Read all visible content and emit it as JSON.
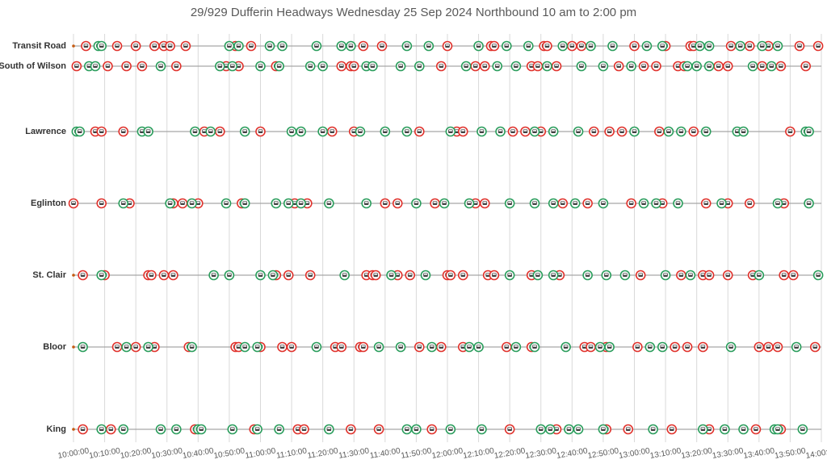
{
  "chart_data": {
    "type": "timeline",
    "title": "29/929 Dufferin Headways Wednesday 25 Sep 2024 Northbound 10 am to 2:00 pm",
    "categories": [
      "Transit Road",
      "South of Wilson",
      "Lawrence",
      "Eglinton",
      "St. Clair",
      "Bloor",
      "King"
    ],
    "xlim": [
      600,
      840
    ],
    "xticks": [
      {
        "value": 600,
        "label": "10:00:00"
      },
      {
        "value": 610,
        "label": "10:10:00"
      },
      {
        "value": 620,
        "label": "10:20:00"
      },
      {
        "value": 630,
        "label": "10:30:00"
      },
      {
        "value": 640,
        "label": "10:40:00"
      },
      {
        "value": 650,
        "label": "10:50:00"
      },
      {
        "value": 660,
        "label": "11:00:00"
      },
      {
        "value": 670,
        "label": "11:10:00"
      },
      {
        "value": 680,
        "label": "11:20:00"
      },
      {
        "value": 690,
        "label": "11:30:00"
      },
      {
        "value": 700,
        "label": "11:40:00"
      },
      {
        "value": 710,
        "label": "11:50:00"
      },
      {
        "value": 720,
        "label": "12:00:00"
      },
      {
        "value": 730,
        "label": "12:10:00"
      },
      {
        "value": 740,
        "label": "12:20:00"
      },
      {
        "value": 750,
        "label": "12:30:00"
      },
      {
        "value": 760,
        "label": "12:40:00"
      },
      {
        "value": 770,
        "label": "12:50:00"
      },
      {
        "value": 780,
        "label": "13:00:00"
      },
      {
        "value": 790,
        "label": "13:10:00"
      },
      {
        "value": 800,
        "label": "13:20:00"
      },
      {
        "value": 810,
        "label": "13:30:00"
      },
      {
        "value": 820,
        "label": "13:40:00"
      },
      {
        "value": 830,
        "label": "13:50:00"
      },
      {
        "value": 840,
        "label": "14:00:00"
      }
    ],
    "grid": true,
    "series": [
      {
        "color": "#e0322c",
        "values": [
          [
            604,
            614,
            620,
            626,
            629,
            631,
            636,
            652,
            657,
            693,
            699,
            720,
            734,
            735,
            751,
            752,
            760,
            763,
            780,
            790,
            798,
            799,
            811,
            817,
            823,
            833,
            839
          ],
          [
            601,
            611,
            617,
            622,
            633,
            649,
            653,
            665,
            686,
            689,
            690,
            718,
            729,
            732,
            747,
            749,
            755,
            775,
            783,
            787,
            794,
            796,
            807,
            810,
            821,
            827,
            835
          ],
          [
            607,
            609,
            616,
            642,
            647,
            660,
            683,
            690,
            711,
            723,
            725,
            741,
            745,
            750,
            767,
            772,
            776,
            788,
            799,
            830
          ],
          [
            600,
            609,
            618,
            632,
            635,
            640,
            654,
            671,
            675,
            700,
            704,
            716,
            729,
            732,
            757,
            765,
            779,
            789,
            803,
            810,
            817,
            828
          ],
          [
            603,
            610,
            624,
            625,
            629,
            632,
            665,
            669,
            676,
            694,
            696,
            697,
            704,
            708,
            720,
            721,
            725,
            733,
            735,
            747,
            756,
            782,
            795,
            802,
            804,
            810,
            818,
            828,
            831
          ],
          [
            614,
            620,
            626,
            637,
            652,
            653,
            660,
            667,
            670,
            684,
            686,
            692,
            693,
            711,
            718,
            725,
            739,
            747,
            764,
            766,
            771,
            781,
            793,
            797,
            802,
            820,
            823,
            826,
            838
          ],
          [
            603,
            612,
            639,
            658,
            672,
            674,
            689,
            698,
            715,
            740,
            755,
            771,
            778,
            792,
            804,
            819,
            827
          ]
        ]
      },
      {
        "color": "#2a9d5c",
        "values": [
          [
            608,
            609,
            650,
            653,
            663,
            667,
            678,
            686,
            689,
            707,
            714,
            730,
            739,
            746,
            757,
            766,
            773,
            784,
            789,
            801,
            804,
            814,
            821,
            826
          ],
          [
            605,
            607,
            628,
            647,
            651,
            660,
            666,
            676,
            680,
            694,
            696,
            705,
            711,
            726,
            736,
            742,
            752,
            763,
            770,
            779,
            797,
            800,
            804,
            818,
            824
          ],
          [
            601,
            602,
            622,
            624,
            639,
            644,
            655,
            670,
            673,
            680,
            692,
            700,
            707,
            721,
            731,
            737,
            748,
            754,
            762,
            780,
            791,
            795,
            803,
            813,
            815,
            835,
            836
          ],
          [
            616,
            631,
            638,
            649,
            655,
            665,
            669,
            673,
            682,
            694,
            710,
            719,
            727,
            740,
            748,
            754,
            761,
            770,
            783,
            787,
            794,
            808,
            826,
            836
          ],
          [
            609,
            645,
            650,
            660,
            664,
            687,
            702,
            713,
            740,
            749,
            754,
            765,
            771,
            777,
            790,
            798,
            820,
            839
          ],
          [
            603,
            617,
            624,
            638,
            655,
            659,
            678,
            698,
            705,
            715,
            727,
            730,
            742,
            748,
            758,
            769,
            772,
            785,
            789,
            811,
            832
          ],
          [
            609,
            616,
            628,
            633,
            640,
            641,
            651,
            659,
            666,
            682,
            707,
            710,
            721,
            731,
            750,
            753,
            759,
            762,
            770,
            786,
            802,
            809,
            815,
            825,
            826,
            834
          ]
        ]
      }
    ]
  }
}
